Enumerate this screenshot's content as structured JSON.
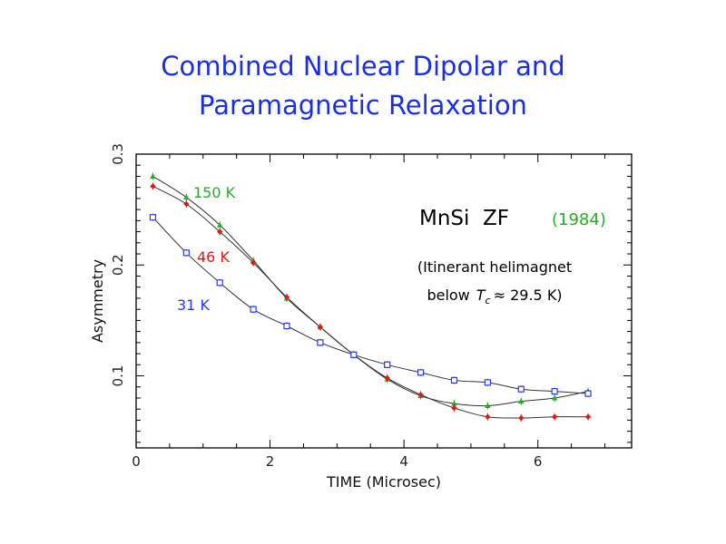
{
  "slide": {
    "title_line1": "Combined Nuclear Dipolar and",
    "title_line2": "Paramagnetic Relaxation"
  },
  "chart_data": {
    "type": "line",
    "xlabel": "TIME (Microsec)",
    "ylabel": "Asymmetry",
    "xlim": [
      0,
      7.4
    ],
    "ylim": [
      0.035,
      0.3
    ],
    "xticks": [
      0,
      2,
      4,
      6
    ],
    "yticks": [
      0.1,
      0.2,
      0.3
    ],
    "grid": false,
    "annotations": {
      "sample": "MnSi  ZF",
      "year": "(1984)",
      "note_line1": "(Itinerant helimagnet",
      "note_line2_prefix": "below",
      "note_tc_symbol": "T",
      "note_tc_subscript": "c",
      "note_tc_value": "≈ 29.5 K)"
    },
    "x": [
      0.25,
      0.75,
      1.25,
      1.75,
      2.25,
      2.75,
      3.25,
      3.75,
      4.25,
      4.75,
      5.25,
      5.75,
      6.25,
      6.75
    ],
    "series": [
      {
        "name": "150 K",
        "color": "#22b022",
        "marker": "triangle",
        "values": [
          0.28,
          0.261,
          0.236,
          0.204,
          0.17,
          0.144,
          0.119,
          0.097,
          0.082,
          0.075,
          0.073,
          0.077,
          0.08,
          0.086
        ]
      },
      {
        "name": "46 K",
        "color": "#e01818",
        "marker": "diamond",
        "values": [
          0.271,
          0.255,
          0.23,
          0.202,
          0.171,
          0.144,
          0.119,
          0.098,
          0.083,
          0.071,
          0.063,
          0.062,
          0.063,
          0.063
        ]
      },
      {
        "name": "31 K",
        "color": "#2a3ae8",
        "marker": "square",
        "values": [
          0.243,
          0.211,
          0.184,
          0.16,
          0.145,
          0.13,
          0.119,
          0.11,
          0.103,
          0.096,
          0.094,
          0.088,
          0.086,
          0.084
        ]
      }
    ]
  }
}
